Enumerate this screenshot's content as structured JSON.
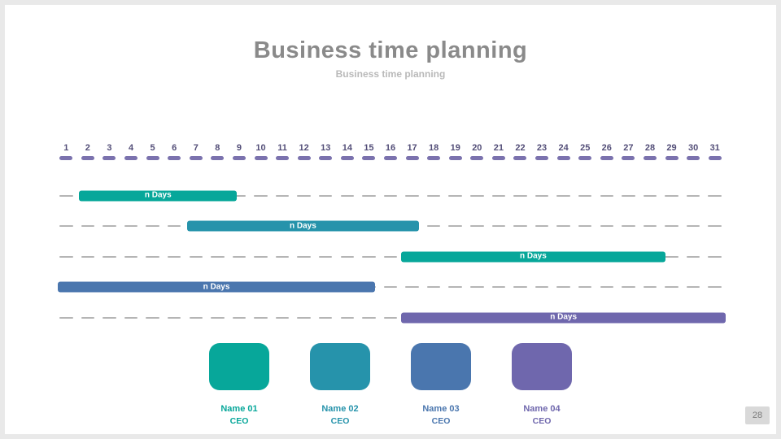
{
  "slide": {
    "title": "Business time planning",
    "subtitle": "Business time planning",
    "page_number": "28"
  },
  "colors": {
    "teal": "#07a79a",
    "cyan": "#2693ab",
    "blue": "#4a76ae",
    "purple": "#6f67ad",
    "day_number": "#534e78",
    "day_tick": "#7b72ae",
    "grid_dash": "#b5b5b5",
    "title_gray": "#8a8a8a",
    "subtitle_gray": "#b9b9b9"
  },
  "chart_data": {
    "type": "bar",
    "variant": "gantt-timeline",
    "title": "Business time planning",
    "x_axis": {
      "unit": "day",
      "min": 1,
      "max": 31,
      "ticks": [
        1,
        2,
        3,
        4,
        5,
        6,
        7,
        8,
        9,
        10,
        11,
        12,
        13,
        14,
        15,
        16,
        17,
        18,
        19,
        20,
        21,
        22,
        23,
        24,
        25,
        26,
        27,
        28,
        29,
        30,
        31
      ]
    },
    "grid": "dashed horizontal segments per day column on each row",
    "legend_position": "none",
    "rows": [
      {
        "label": "n Days",
        "start_day": 1.6,
        "end_day": 8.9,
        "color_key": "teal"
      },
      {
        "label": "n Days",
        "start_day": 6.6,
        "end_day": 17.3,
        "color_key": "cyan"
      },
      {
        "label": "n Days",
        "start_day": 16.5,
        "end_day": 28.7,
        "color_key": "teal"
      },
      {
        "label": "n Days",
        "start_day": 0.6,
        "end_day": 15.3,
        "color_key": "blue"
      },
      {
        "label": "n Days",
        "start_day": 16.5,
        "end_day": 31.5,
        "color_key": "purple"
      }
    ]
  },
  "people": [
    {
      "name": "Name 01",
      "role": "CEO",
      "color_key": "teal"
    },
    {
      "name": "Name 02",
      "role": "CEO",
      "color_key": "cyan"
    },
    {
      "name": "Name 03",
      "role": "CEO",
      "color_key": "blue"
    },
    {
      "name": "Name 04",
      "role": "CEO",
      "color_key": "purple"
    }
  ]
}
